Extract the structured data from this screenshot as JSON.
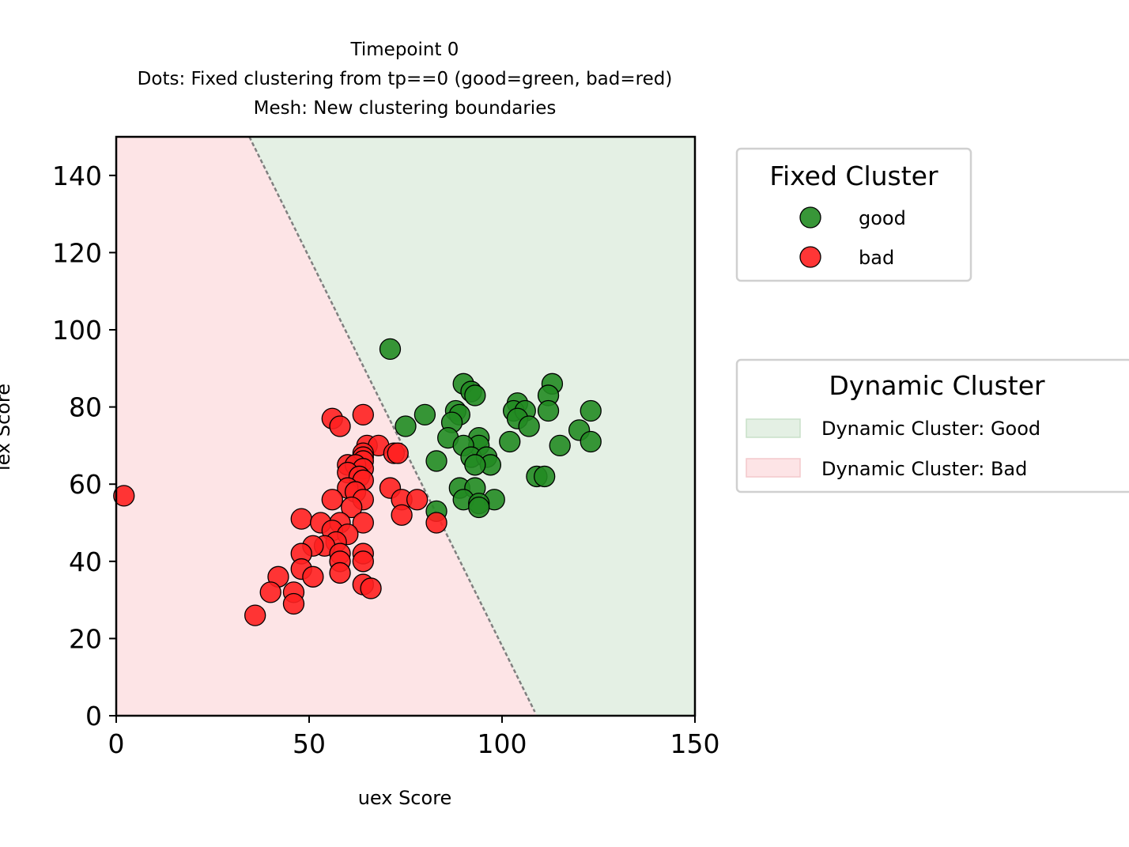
{
  "chart_data": {
    "type": "scatter",
    "title_lines": [
      "Timepoint 0",
      "Dots: Fixed clustering from tp==0 (good=green, bad=red)",
      "Mesh: New clustering boundaries"
    ],
    "xlabel": "uex Score",
    "ylabel": "lex Score",
    "xlim": [
      0,
      150
    ],
    "ylim": [
      0,
      150
    ],
    "xticks": [
      "0",
      "50",
      "100",
      "150"
    ],
    "yticks": [
      "0",
      "20",
      "40",
      "60",
      "80",
      "100",
      "120",
      "140"
    ],
    "grid": false,
    "colors": {
      "good_point": "#228b22",
      "bad_point": "#ff2020",
      "good_region": "#e4f0e4",
      "bad_region": "#fde4e6",
      "boundary": "#808080"
    },
    "boundary_line": {
      "style": "dashed",
      "points": [
        [
          34.5,
          150
        ],
        [
          108.5,
          1
        ]
      ]
    },
    "series": [
      {
        "name": "good",
        "color": "#228b22",
        "points": [
          [
            71,
            95
          ],
          [
            90,
            86
          ],
          [
            92,
            84
          ],
          [
            93,
            83
          ],
          [
            113,
            86
          ],
          [
            112,
            83
          ],
          [
            104,
            81
          ],
          [
            103,
            79
          ],
          [
            106,
            79
          ],
          [
            112,
            79
          ],
          [
            123,
            79
          ],
          [
            80,
            78
          ],
          [
            88,
            79
          ],
          [
            89,
            78
          ],
          [
            104,
            77
          ],
          [
            87,
            76
          ],
          [
            75,
            75
          ],
          [
            107,
            75
          ],
          [
            120,
            74
          ],
          [
            86,
            72
          ],
          [
            94,
            72
          ],
          [
            94,
            70
          ],
          [
            102,
            71
          ],
          [
            123,
            71
          ],
          [
            115,
            70
          ],
          [
            90,
            70
          ],
          [
            92,
            67
          ],
          [
            96,
            67
          ],
          [
            97,
            65
          ],
          [
            93,
            65
          ],
          [
            83,
            66
          ],
          [
            109,
            62
          ],
          [
            111,
            62
          ],
          [
            89,
            59
          ],
          [
            93,
            59
          ],
          [
            98,
            56
          ],
          [
            90,
            56
          ],
          [
            94,
            55
          ],
          [
            94,
            54
          ],
          [
            83,
            53
          ]
        ]
      },
      {
        "name": "bad",
        "color": "#ff2020",
        "points": [
          [
            2,
            57
          ],
          [
            56,
            77
          ],
          [
            58,
            75
          ],
          [
            64,
            78
          ],
          [
            65,
            70
          ],
          [
            68,
            70
          ],
          [
            64,
            68
          ],
          [
            64,
            67
          ],
          [
            64,
            66
          ],
          [
            72,
            68
          ],
          [
            73,
            68
          ],
          [
            60,
            65
          ],
          [
            62,
            65
          ],
          [
            64,
            64
          ],
          [
            60,
            63
          ],
          [
            63,
            62
          ],
          [
            64,
            61
          ],
          [
            71,
            59
          ],
          [
            60,
            59
          ],
          [
            62,
            58
          ],
          [
            56,
            56
          ],
          [
            64,
            56
          ],
          [
            74,
            56
          ],
          [
            78,
            56
          ],
          [
            61,
            54
          ],
          [
            74,
            52
          ],
          [
            48,
            51
          ],
          [
            53,
            50
          ],
          [
            58,
            50
          ],
          [
            64,
            50
          ],
          [
            83,
            50
          ],
          [
            56,
            48
          ],
          [
            60,
            47
          ],
          [
            57,
            45
          ],
          [
            54,
            44
          ],
          [
            51,
            44
          ],
          [
            48,
            42
          ],
          [
            58,
            42
          ],
          [
            64,
            42
          ],
          [
            48,
            38
          ],
          [
            58,
            40
          ],
          [
            64,
            40
          ],
          [
            51,
            36
          ],
          [
            58,
            37
          ],
          [
            42,
            36
          ],
          [
            40,
            32
          ],
          [
            46,
            32
          ],
          [
            64,
            34
          ],
          [
            66,
            33
          ],
          [
            46,
            29
          ],
          [
            36,
            26
          ]
        ]
      }
    ],
    "legends": [
      {
        "title": "Fixed Cluster",
        "placement": "outside upper right",
        "entries": [
          {
            "label": "good",
            "kind": "marker",
            "color": "#228b22"
          },
          {
            "label": "bad",
            "kind": "marker",
            "color": "#ff2020"
          }
        ]
      },
      {
        "title": "Dynamic Cluster",
        "placement": "outside right",
        "entries": [
          {
            "label": "Dynamic Cluster: Good",
            "kind": "patch",
            "color": "#e4f0e4"
          },
          {
            "label": "Dynamic Cluster: Bad",
            "kind": "patch",
            "color": "#fde4e6"
          }
        ]
      }
    ]
  }
}
